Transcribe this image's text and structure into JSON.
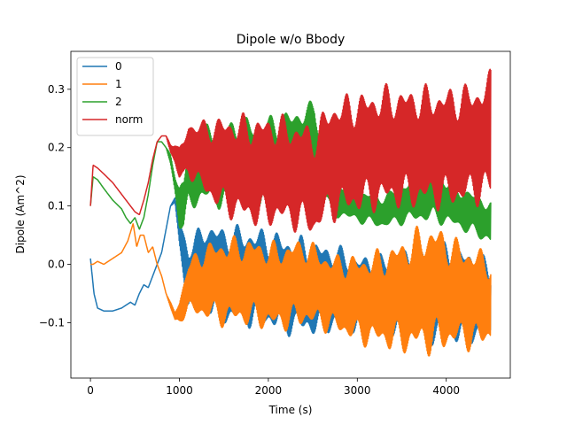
{
  "chart_data": {
    "type": "line",
    "title": "Dipole w/o Bbody",
    "xlabel": "Time (s)",
    "ylabel": "Dipole (Am^2)",
    "xlim": [
      -220,
      4720
    ],
    "ylim": [
      -0.195,
      0.365
    ],
    "xticks": [
      0,
      1000,
      2000,
      3000,
      4000
    ],
    "xtick_labels": [
      "0",
      "1000",
      "2000",
      "3000",
      "4000"
    ],
    "yticks": [
      -0.1,
      0.0,
      0.1,
      0.2,
      0.3
    ],
    "ytick_labels": [
      "−0.1",
      "0.0",
      "0.1",
      "0.2",
      "0.3"
    ],
    "grid": false,
    "legend_position": "upper-left",
    "series": [
      {
        "name": "0",
        "color": "#1f77b4",
        "x": [
          0,
          40,
          80,
          150,
          250,
          350,
          450,
          500,
          550,
          600,
          650,
          700,
          750,
          800,
          850,
          900,
          950,
          1000,
          1100,
          1300,
          1500,
          1800,
          2100,
          2400,
          2700,
          3000,
          3300,
          3600,
          3850,
          4100,
          4400,
          4500
        ],
        "center": [
          0.01,
          -0.05,
          -0.075,
          -0.08,
          -0.08,
          -0.075,
          -0.065,
          -0.07,
          -0.05,
          -0.035,
          -0.04,
          -0.02,
          0.0,
          0.02,
          0.06,
          0.1,
          0.11,
          0.05,
          -0.02,
          0.0,
          -0.02,
          -0.02,
          -0.03,
          -0.04,
          -0.04,
          -0.05,
          -0.05,
          -0.05,
          -0.05,
          -0.05,
          -0.06,
          -0.07
        ],
        "amp": [
          0.0,
          0.0,
          0.0,
          0.0,
          0.0,
          0.0,
          0.0,
          0.0,
          0.0,
          0.0,
          0.0,
          0.0,
          0.0,
          0.0,
          0.0,
          0.0,
          0.005,
          0.03,
          0.06,
          0.08,
          0.09,
          0.09,
          0.09,
          0.09,
          0.08,
          0.07,
          0.07,
          0.08,
          0.09,
          0.09,
          0.08,
          0.07
        ]
      },
      {
        "name": "1",
        "color": "#ff7f0e",
        "x": [
          0,
          30,
          80,
          150,
          250,
          350,
          420,
          480,
          520,
          560,
          600,
          650,
          700,
          750,
          800,
          850,
          900,
          950,
          1000,
          1100,
          1300,
          1500,
          1800,
          2100,
          2400,
          2700,
          3000,
          3300,
          3600,
          3850,
          4100,
          4400,
          4500
        ],
        "center": [
          0.0,
          0.0,
          0.005,
          0.0,
          0.01,
          0.02,
          0.04,
          0.07,
          0.03,
          0.05,
          0.05,
          0.02,
          0.03,
          0.0,
          -0.02,
          -0.05,
          -0.07,
          -0.09,
          -0.08,
          -0.04,
          -0.03,
          -0.03,
          -0.03,
          -0.04,
          -0.03,
          -0.05,
          -0.06,
          -0.06,
          -0.05,
          -0.04,
          -0.05,
          -0.06,
          -0.06
        ],
        "amp": [
          0.0,
          0.0,
          0.0,
          0.0,
          0.0,
          0.0,
          0.0,
          0.0,
          0.0,
          0.0,
          0.0,
          0.0,
          0.0,
          0.0,
          0.0,
          0.0,
          0.005,
          0.01,
          0.02,
          0.05,
          0.07,
          0.08,
          0.08,
          0.08,
          0.08,
          0.07,
          0.08,
          0.09,
          0.11,
          0.12,
          0.1,
          0.09,
          0.08
        ]
      },
      {
        "name": "2",
        "color": "#2ca02c",
        "x": [
          0,
          30,
          80,
          150,
          250,
          350,
          400,
          450,
          500,
          550,
          600,
          650,
          700,
          750,
          800,
          850,
          900,
          950,
          1000,
          1050,
          1100,
          1300,
          1500,
          1800,
          2100,
          2400,
          2520,
          2700,
          3000,
          3300,
          3600,
          3850,
          4100,
          4400,
          4500
        ],
        "center": [
          0.1,
          0.15,
          0.145,
          0.13,
          0.11,
          0.095,
          0.08,
          0.07,
          0.08,
          0.06,
          0.08,
          0.12,
          0.17,
          0.21,
          0.21,
          0.2,
          0.18,
          0.14,
          0.1,
          0.1,
          0.15,
          0.17,
          0.17,
          0.175,
          0.18,
          0.2,
          0.22,
          0.12,
          0.1,
          0.09,
          0.11,
          0.12,
          0.1,
          0.08,
          0.07
        ],
        "amp": [
          0.0,
          0.0,
          0.0,
          0.0,
          0.0,
          0.0,
          0.0,
          0.0,
          0.0,
          0.0,
          0.0,
          0.0,
          0.0,
          0.0,
          0.0,
          0.0,
          0.01,
          0.02,
          0.04,
          0.05,
          0.06,
          0.07,
          0.08,
          0.08,
          0.08,
          0.08,
          0.06,
          0.04,
          0.03,
          0.03,
          0.04,
          0.05,
          0.04,
          0.04,
          0.04
        ]
      },
      {
        "name": "norm",
        "color": "#d62728",
        "x": [
          0,
          30,
          80,
          150,
          250,
          350,
          400,
          450,
          500,
          550,
          600,
          650,
          700,
          750,
          800,
          850,
          900,
          950,
          1000,
          1050,
          1100,
          1300,
          1500,
          1800,
          2100,
          2400,
          2520,
          2700,
          3000,
          3300,
          3600,
          3850,
          4100,
          4400,
          4500
        ],
        "center": [
          0.1,
          0.17,
          0.165,
          0.155,
          0.14,
          0.12,
          0.11,
          0.1,
          0.09,
          0.085,
          0.11,
          0.14,
          0.18,
          0.21,
          0.22,
          0.22,
          0.2,
          0.19,
          0.17,
          0.18,
          0.2,
          0.18,
          0.17,
          0.16,
          0.16,
          0.15,
          0.14,
          0.18,
          0.19,
          0.2,
          0.2,
          0.2,
          0.2,
          0.21,
          0.22
        ],
        "amp": [
          0.0,
          0.0,
          0.0,
          0.0,
          0.0,
          0.0,
          0.0,
          0.0,
          0.0,
          0.0,
          0.0,
          0.0,
          0.0,
          0.0,
          0.0,
          0.0,
          0.01,
          0.02,
          0.03,
          0.04,
          0.05,
          0.07,
          0.09,
          0.1,
          0.1,
          0.1,
          0.1,
          0.11,
          0.11,
          0.11,
          0.11,
          0.11,
          0.11,
          0.11,
          0.12
        ]
      }
    ]
  }
}
